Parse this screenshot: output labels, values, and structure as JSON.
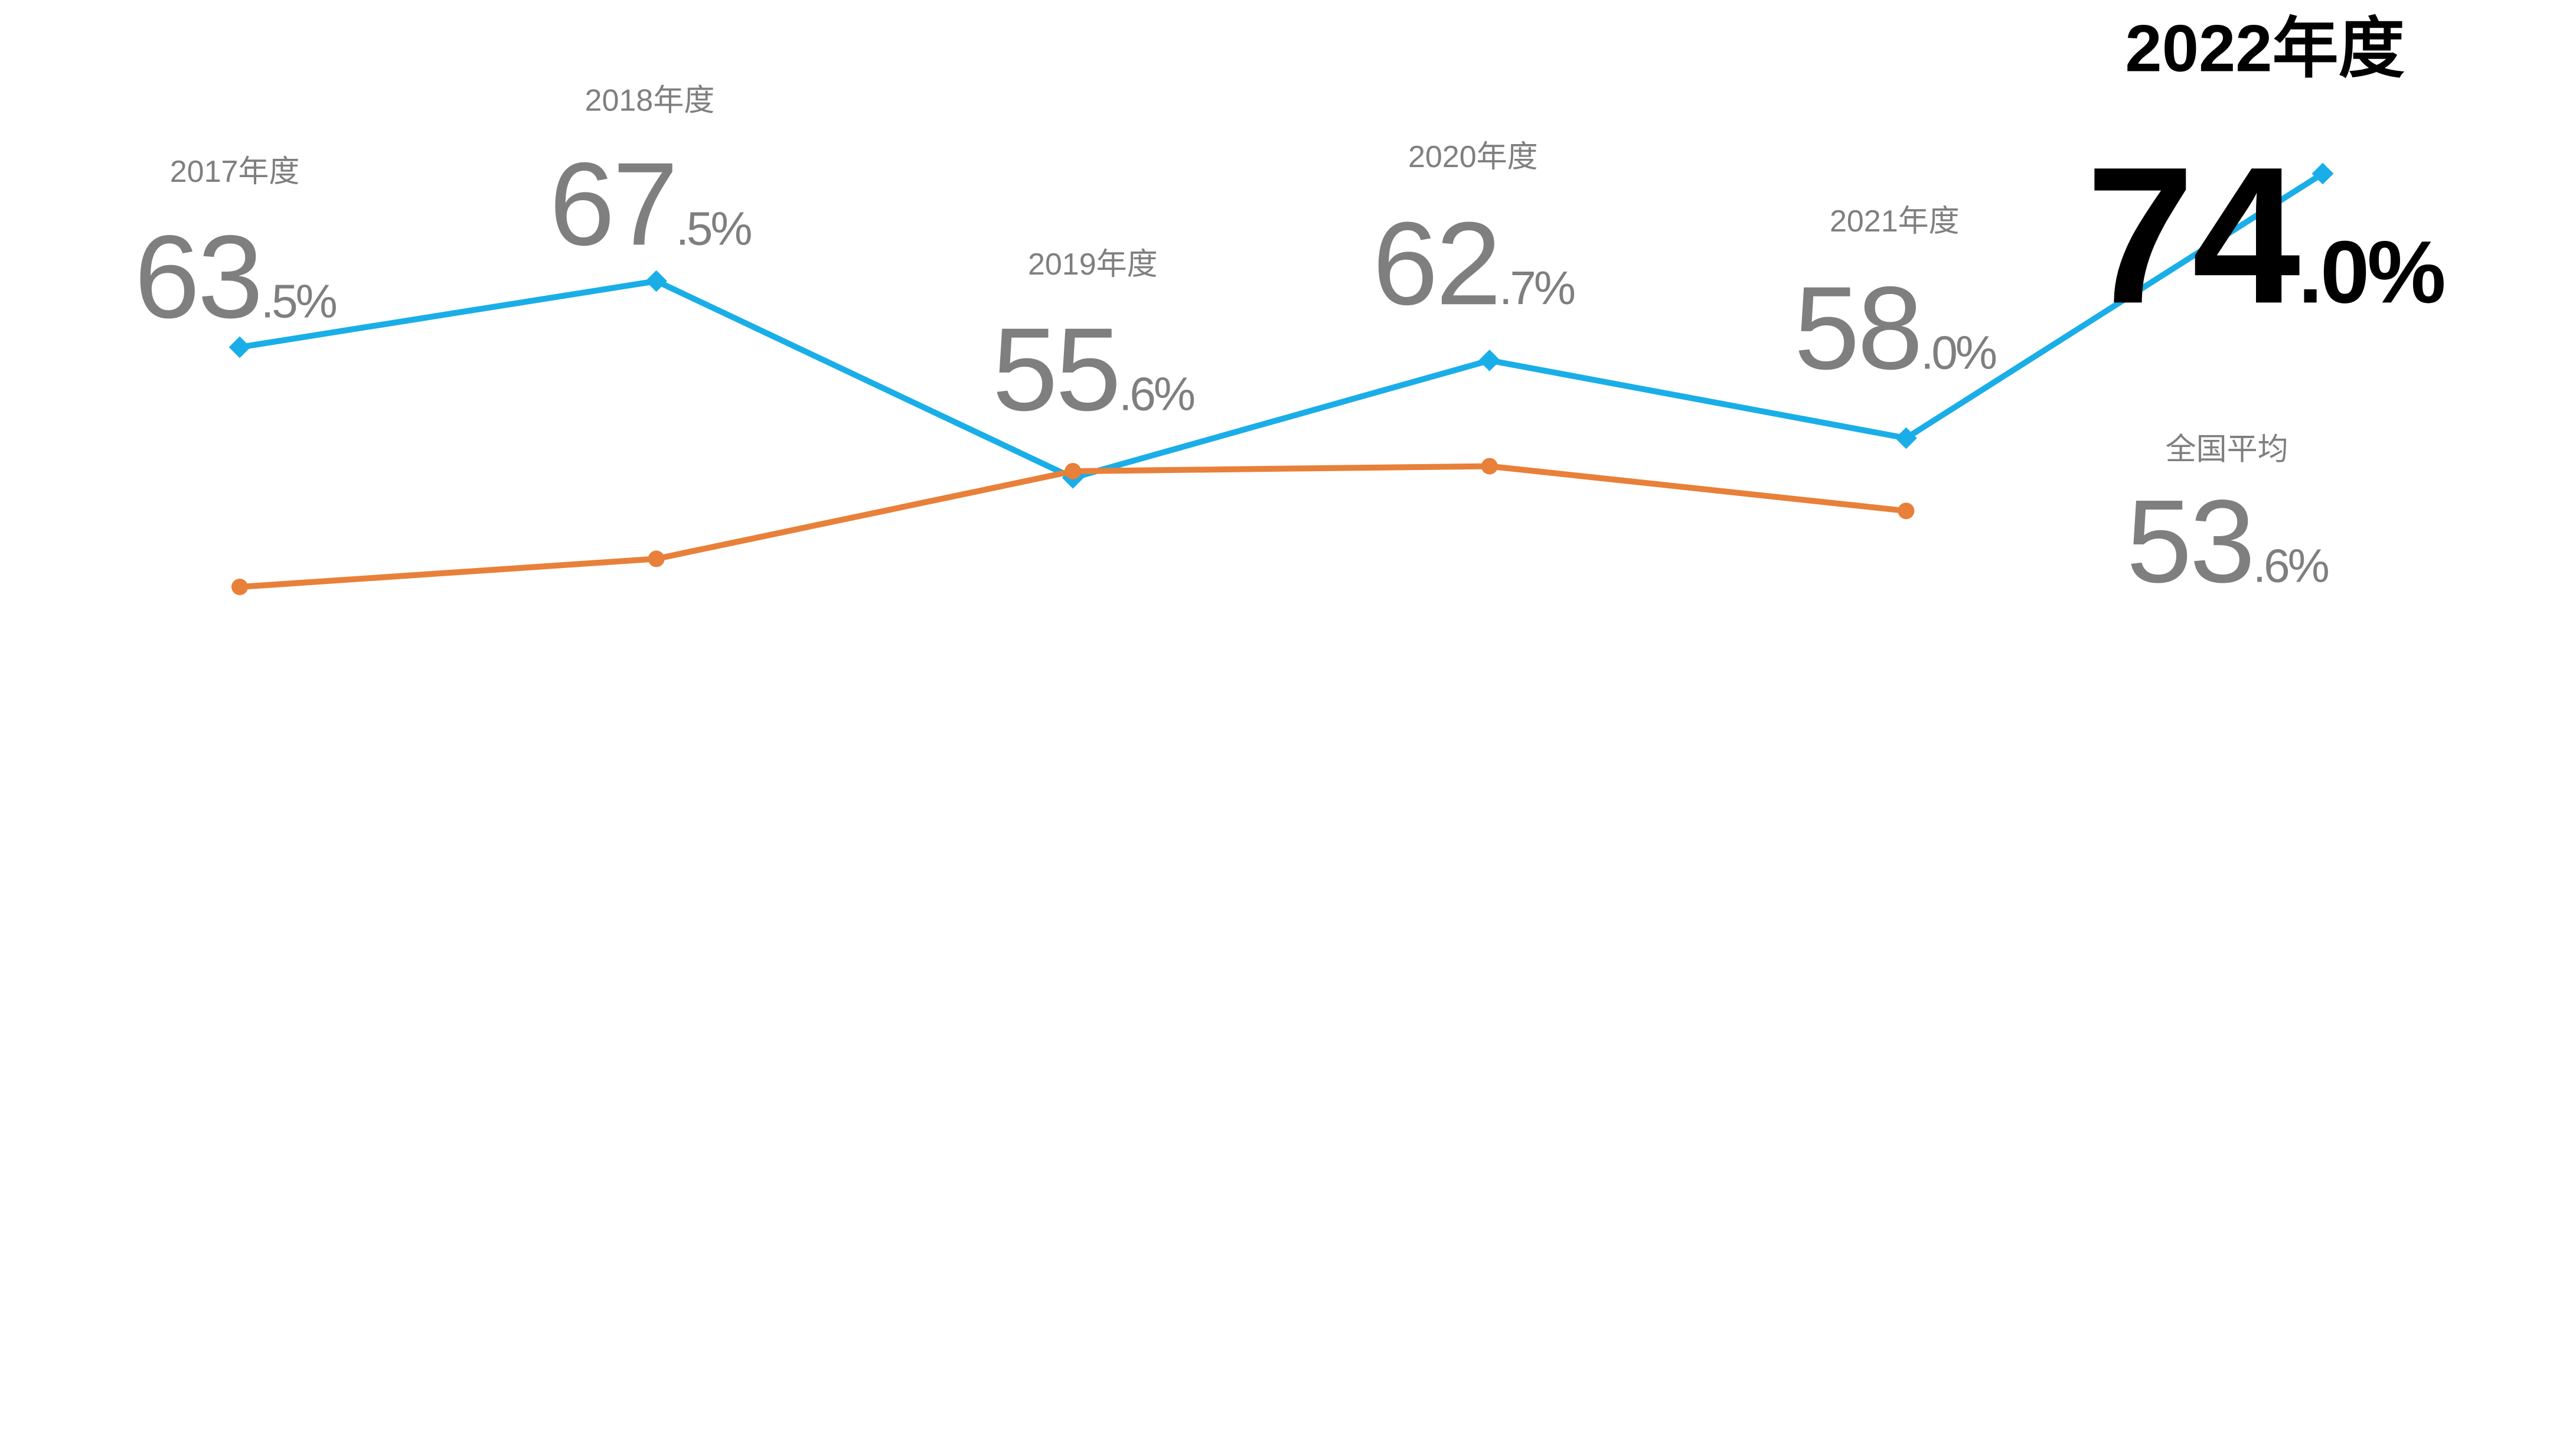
{
  "chart_data": {
    "type": "line",
    "categories": [
      "2017年度",
      "2018年度",
      "2019年度",
      "2020年度",
      "2021年度",
      "2022年度"
    ],
    "series": [
      {
        "name": "",
        "color": "#1aaee8",
        "values": [
          63.5,
          67.5,
          55.6,
          62.7,
          58.0,
          74.0
        ],
        "value_labels": [
          "63.5%",
          "67.5%",
          "55.6%",
          "62.7%",
          "58.0%",
          "74.0%"
        ]
      },
      {
        "name": "全国平均",
        "color": "#e8803a",
        "values": [
          49.0,
          50.7,
          56.0,
          56.3,
          53.6,
          null
        ],
        "value_labels": [
          null,
          null,
          null,
          null,
          "53.6%",
          null
        ]
      }
    ],
    "ylim": [
      0,
      80
    ]
  }
}
